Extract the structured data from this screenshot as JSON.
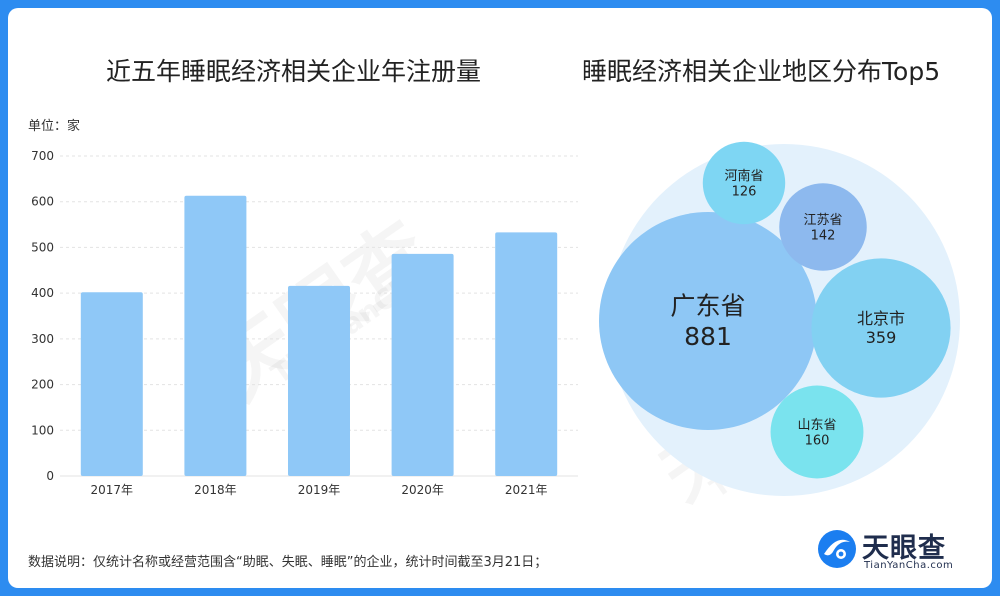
{
  "bar_title": "近五年睡眠经济相关企业年注册量",
  "bubble_title": "睡眠经济相关企业地区分布Top5",
  "unit_label": "单位：家",
  "footnote": "数据说明：仅统计名称或经营范围含“助眠、失眠、睡眠”的企业，统计时间截至3月21日；",
  "logo": {
    "name": "天眼查",
    "sub": "TianYanCha.com"
  },
  "watermark": {
    "cn": "天眼查",
    "en": "TianYanCha"
  },
  "colors": {
    "frame": "#2d8cf0",
    "bar": "#8fc8f7",
    "bubble_outer": "#e3f1fc",
    "guangdong": "#8ec7f5",
    "beijing": "#82d1f2",
    "henan": "#7ed6f3",
    "jiangsu": "#8db9ee",
    "shandong": "#7ae3ee"
  },
  "chart_data": [
    {
      "type": "bar",
      "title": "近五年睡眠经济相关企业年注册量",
      "ylabel": "单位：家",
      "categories": [
        "2017年",
        "2018年",
        "2019年",
        "2020年",
        "2021年"
      ],
      "values": [
        402,
        613,
        416,
        486,
        533
      ],
      "ylim": [
        0,
        700
      ],
      "yticks": [
        0,
        100,
        200,
        300,
        400,
        500,
        600,
        700
      ],
      "grid": true
    },
    {
      "type": "bubble",
      "title": "睡眠经济相关企业地区分布Top5",
      "items": [
        {
          "name": "广东省",
          "value": 881,
          "color_key": "guangdong"
        },
        {
          "name": "北京市",
          "value": 359,
          "color_key": "beijing"
        },
        {
          "name": "河南省",
          "value": 126,
          "color_key": "henan"
        },
        {
          "name": "江苏省",
          "value": 142,
          "color_key": "jiangsu"
        },
        {
          "name": "山东省",
          "value": 160,
          "color_key": "shandong"
        }
      ]
    }
  ]
}
